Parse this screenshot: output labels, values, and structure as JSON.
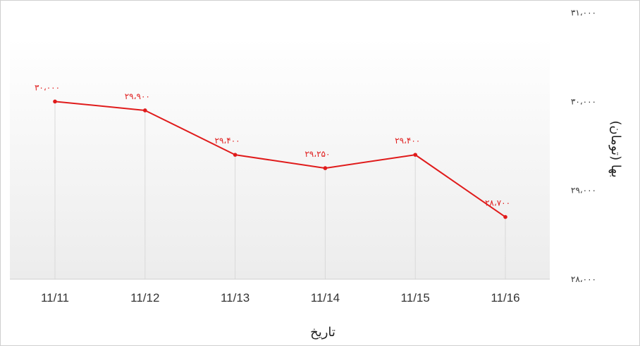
{
  "chart_data": {
    "type": "line",
    "xlabel": "تاریخ",
    "ylabel": "بها (تومان)",
    "categories": [
      "11/11",
      "11/12",
      "11/13",
      "11/14",
      "11/15",
      "11/16"
    ],
    "values": [
      30000,
      29900,
      29400,
      29250,
      29400,
      28700
    ],
    "value_labels": [
      "۳۰،۰۰۰",
      "۲۹،۹۰۰",
      "۲۹،۴۰۰",
      "۲۹،۲۵۰",
      "۲۹،۴۰۰",
      "۲۸،۷۰۰"
    ],
    "ylim": [
      28000,
      31000
    ],
    "yticks": [
      28000,
      29000,
      30000,
      31000
    ],
    "ytick_labels": [
      "۲۸،۰۰۰",
      "۲۹،۰۰۰",
      "۳۰،۰۰۰",
      "۳۱،۰۰۰"
    ],
    "grid": true,
    "colors": {
      "line": "#e01b1b",
      "marker": "#e01b1b",
      "grid": "#d9d9d9",
      "plot_bg_top": "#ffffff",
      "plot_bg_bottom": "#ececec"
    }
  }
}
